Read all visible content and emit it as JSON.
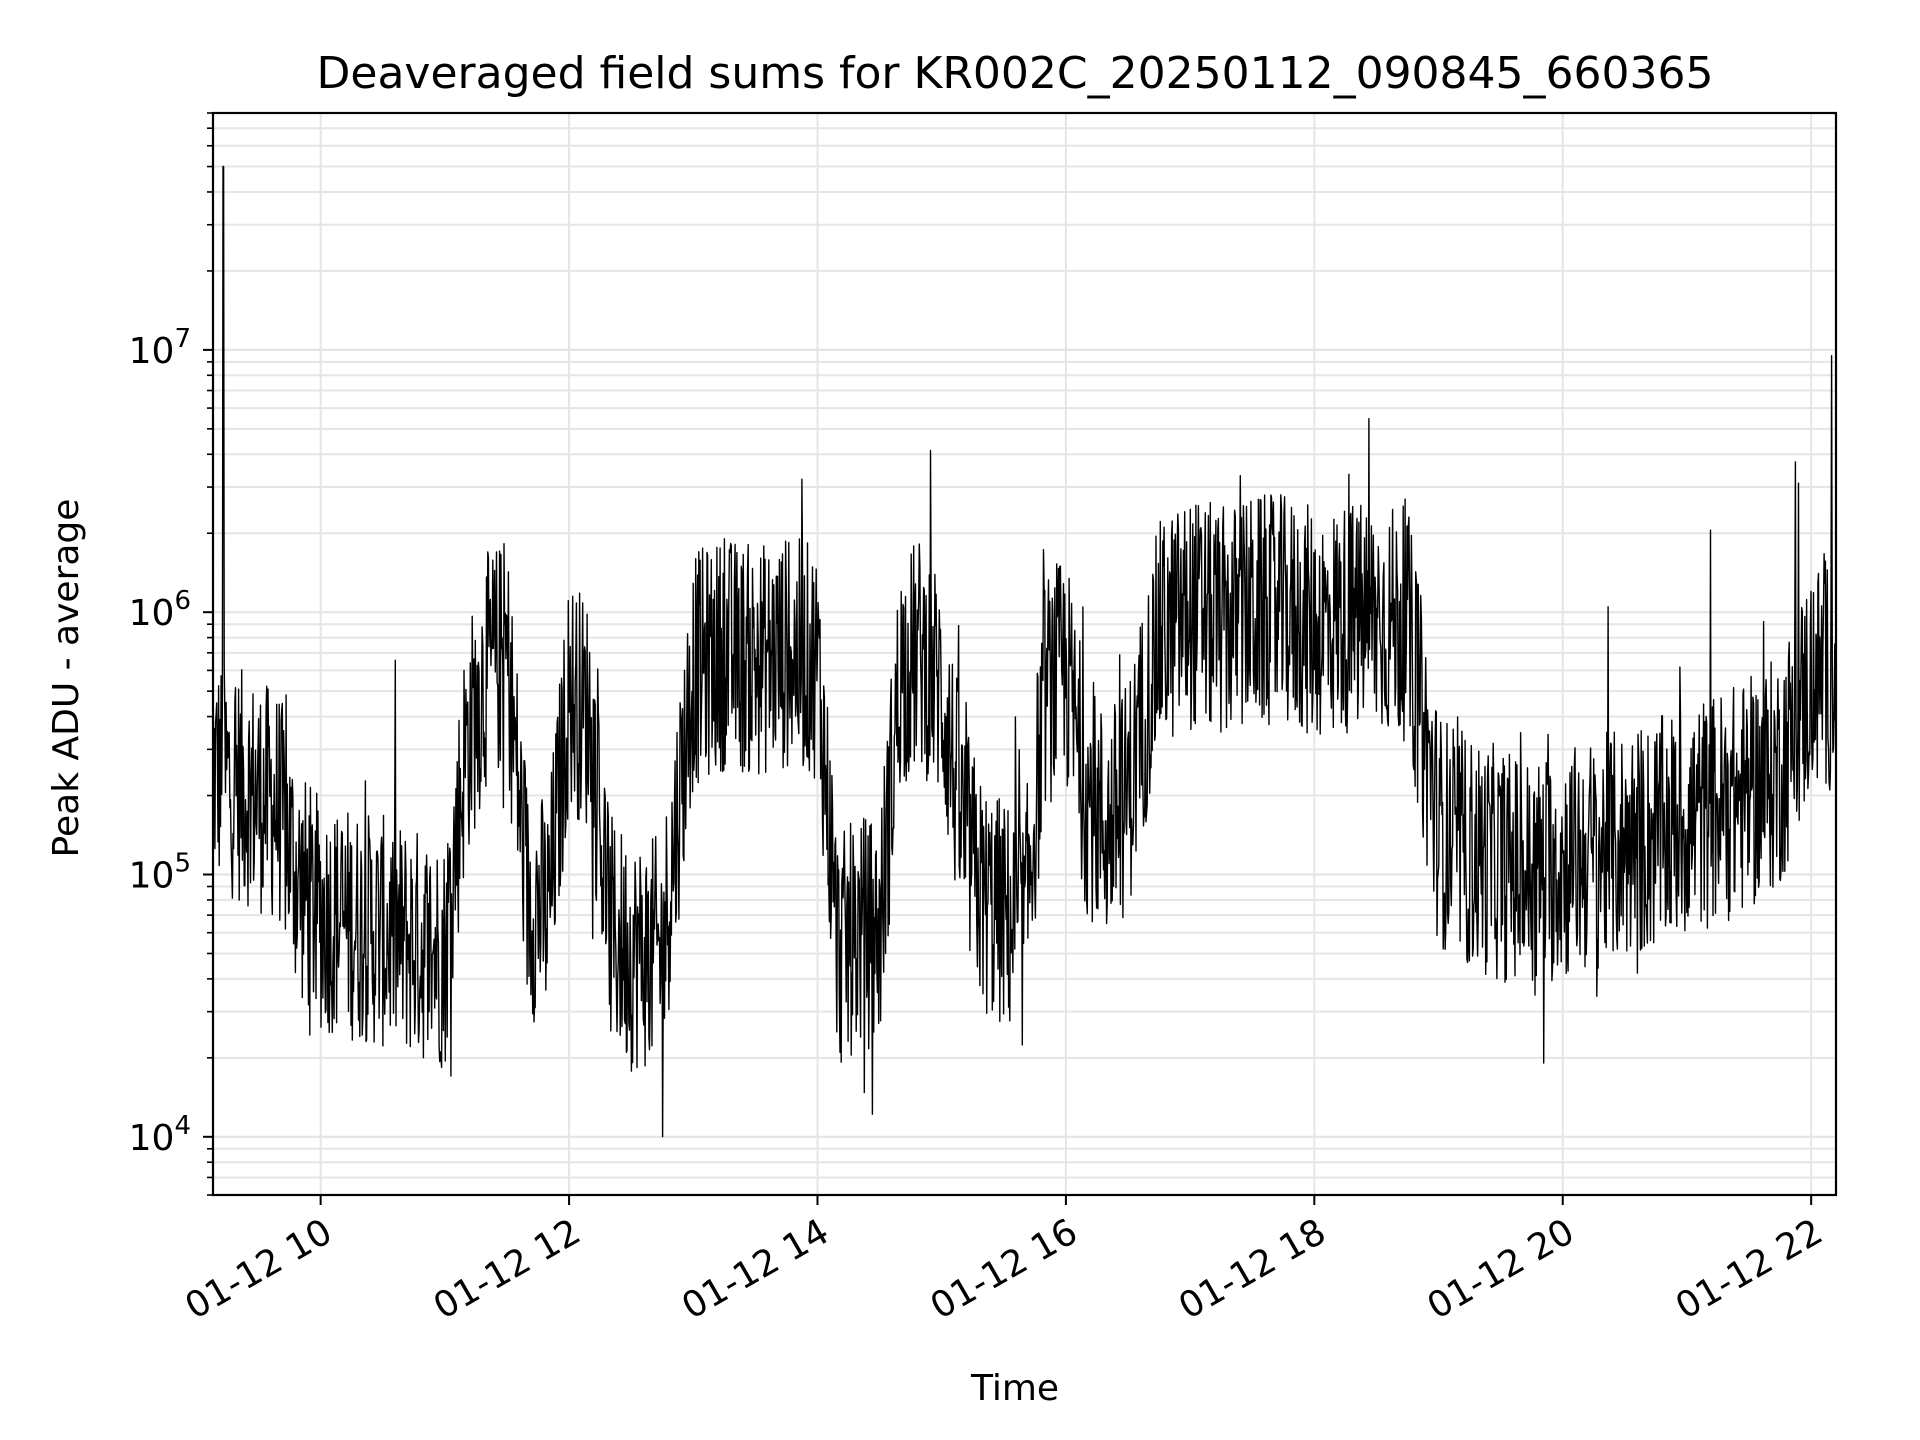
{
  "chart_data": {
    "type": "line",
    "title": "Deaveraged field sums for KR002C_20250112_090845_660365",
    "xlabel": "Time",
    "ylabel": "Peak ADU - average",
    "y_scale": "log",
    "ylim": [
      6000,
      80000000
    ],
    "x_range": [
      "2025-01-12 09:08",
      "2025-01-12 22:12"
    ],
    "x_ticks": [
      {
        "value": "2025-01-12 10:00",
        "label": "01-12 10"
      },
      {
        "value": "2025-01-12 12:00",
        "label": "01-12 12"
      },
      {
        "value": "2025-01-12 14:00",
        "label": "01-12 14"
      },
      {
        "value": "2025-01-12 16:00",
        "label": "01-12 16"
      },
      {
        "value": "2025-01-12 18:00",
        "label": "01-12 18"
      },
      {
        "value": "2025-01-12 20:00",
        "label": "01-12 20"
      },
      {
        "value": "2025-01-12 22:00",
        "label": "01-12 22"
      }
    ],
    "y_ticks": [
      {
        "value": 10000,
        "base": "10",
        "exp": "4"
      },
      {
        "value": 100000,
        "base": "10",
        "exp": "5"
      },
      {
        "value": 1000000,
        "base": "10",
        "exp": "6"
      },
      {
        "value": 10000000,
        "base": "10",
        "exp": "7"
      }
    ],
    "grid": true,
    "line_color": "#000000",
    "grid_color": "#e5e5e5",
    "series": [
      {
        "x": [
          "2025-01-12 09:08",
          "2025-01-12 09:20",
          "2025-01-12 09:30",
          "2025-01-12 09:40",
          "2025-01-12 09:50",
          "2025-01-12 10:00",
          "2025-01-12 10:15",
          "2025-01-12 10:30",
          "2025-01-12 10:45",
          "2025-01-12 11:00",
          "2025-01-12 11:10",
          "2025-01-12 11:20",
          "2025-01-12 11:30",
          "2025-01-12 11:40",
          "2025-01-12 11:50",
          "2025-01-12 12:00",
          "2025-01-12 12:10",
          "2025-01-12 12:20",
          "2025-01-12 12:30",
          "2025-01-12 12:45",
          "2025-01-12 13:00",
          "2025-01-12 13:15",
          "2025-01-12 13:30",
          "2025-01-12 13:45",
          "2025-01-12 14:00",
          "2025-01-12 14:10",
          "2025-01-12 14:20",
          "2025-01-12 14:30",
          "2025-01-12 14:40",
          "2025-01-12 14:50",
          "2025-01-12 15:00",
          "2025-01-12 15:10",
          "2025-01-12 15:20",
          "2025-01-12 15:30",
          "2025-01-12 15:40",
          "2025-01-12 15:50",
          "2025-01-12 16:00",
          "2025-01-12 16:10",
          "2025-01-12 16:20",
          "2025-01-12 16:30",
          "2025-01-12 16:45",
          "2025-01-12 17:00",
          "2025-01-12 17:15",
          "2025-01-12 17:30",
          "2025-01-12 17:45",
          "2025-01-12 18:00",
          "2025-01-12 18:15",
          "2025-01-12 18:30",
          "2025-01-12 18:45",
          "2025-01-12 19:00",
          "2025-01-12 19:15",
          "2025-01-12 19:30",
          "2025-01-12 19:45",
          "2025-01-12 20:00",
          "2025-01-12 20:15",
          "2025-01-12 20:30",
          "2025-01-12 20:45",
          "2025-01-12 21:00",
          "2025-01-12 21:15",
          "2025-01-12 21:30",
          "2025-01-12 21:45",
          "2025-01-12 22:00",
          "2025-01-12 22:12"
        ],
        "y": [
          250000,
          220000,
          200000,
          180000,
          90000,
          70000,
          65000,
          60000,
          55000,
          50000,
          300000,
          600000,
          700000,
          80000,
          70000,
          500000,
          400000,
          60000,
          50000,
          50000,
          600000,
          700000,
          650000,
          700000,
          650000,
          50000,
          60000,
          60000,
          600000,
          700000,
          500000,
          150000,
          80000,
          70000,
          60000,
          500000,
          600000,
          200000,
          150000,
          200000,
          800000,
          1000000,
          900000,
          1000000,
          1000000,
          900000,
          950000,
          950000,
          900000,
          150000,
          120000,
          110000,
          100000,
          110000,
          120000,
          130000,
          140000,
          160000,
          180000,
          200000,
          250000,
          550000,
          600000
        ]
      }
    ],
    "spikes": [
      {
        "x": "2025-01-12 09:13",
        "y": 50000000
      },
      {
        "x": "2025-01-12 22:10",
        "y": 9500000
      }
    ]
  }
}
